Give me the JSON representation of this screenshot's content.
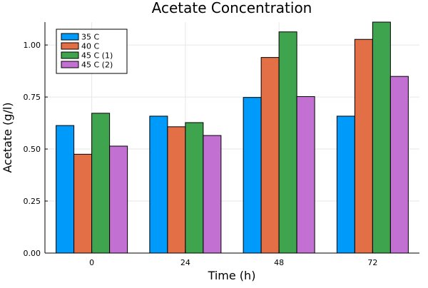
{
  "chart_data": {
    "type": "bar",
    "title": "Acetate Concentration",
    "xlabel": "Time (h)",
    "ylabel": "Acetate (g/l)",
    "categories": [
      "0",
      "24",
      "48",
      "72"
    ],
    "ylim": [
      0,
      1.11
    ],
    "yticks": [
      "0.00",
      "0.25",
      "0.50",
      "0.75",
      "1.00"
    ],
    "grid": true,
    "legend_position": "top-left",
    "series": [
      {
        "name": "35 C",
        "color": "#009AFA",
        "values": [
          0.613,
          0.658,
          0.748,
          0.658
        ]
      },
      {
        "name": "40 C",
        "color": "#E26F46",
        "values": [
          0.475,
          0.607,
          0.94,
          1.027
        ]
      },
      {
        "name": "45 C (1)",
        "color": "#3EA44E",
        "values": [
          0.672,
          0.627,
          1.063,
          1.11
        ]
      },
      {
        "name": "45 C (2)",
        "color": "#C271D2",
        "values": [
          0.514,
          0.565,
          0.752,
          0.849
        ]
      }
    ]
  }
}
